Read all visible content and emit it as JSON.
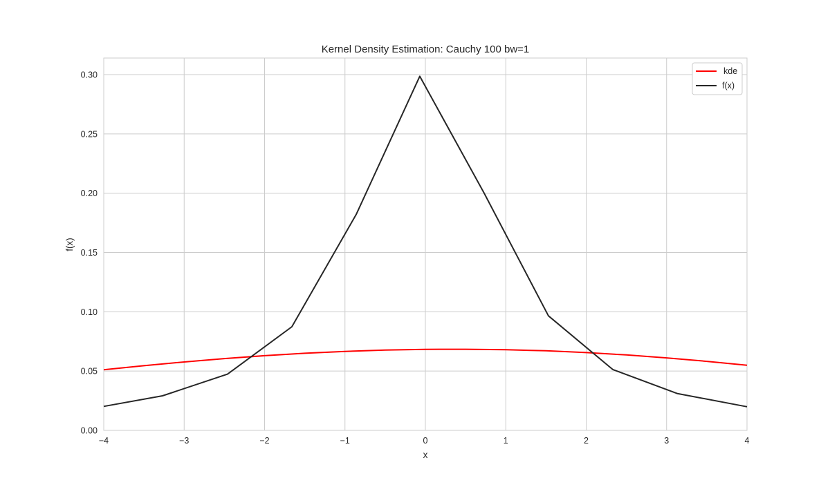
{
  "chart_data": {
    "type": "line",
    "title": "Kernel Density Estimation: Cauchy 100 bw=1",
    "xlabel": "x",
    "ylabel": "f(x)",
    "xlim": [
      -4,
      4
    ],
    "ylim": [
      0,
      0.314
    ],
    "grid": true,
    "legend_position": "top-right",
    "x_ticks": [
      -4,
      -3,
      -2,
      -1,
      0,
      1,
      2,
      3,
      4
    ],
    "x_tick_labels": [
      "−4",
      "−3",
      "−2",
      "−1",
      "0",
      "1",
      "2",
      "3",
      "4"
    ],
    "y_ticks": [
      0,
      0.05,
      0.1,
      0.15,
      0.2,
      0.25,
      0.3
    ],
    "y_tick_labels": [
      "0.00",
      "0.05",
      "0.10",
      "0.15",
      "0.20",
      "0.25",
      "0.30"
    ],
    "series": [
      {
        "name": "kde",
        "color": "#ff0000",
        "x": [
          -4,
          -3.5,
          -3,
          -2.5,
          -2,
          -1.5,
          -1,
          -0.5,
          0,
          0.3,
          0.5,
          1,
          1.5,
          2,
          2.5,
          3,
          3.5,
          4
        ],
        "y": [
          0.0511,
          0.0545,
          0.0577,
          0.0605,
          0.063,
          0.065,
          0.0666,
          0.0677,
          0.0683,
          0.0684,
          0.0684,
          0.068,
          0.0671,
          0.0656,
          0.0636,
          0.0611,
          0.0582,
          0.0549
        ]
      },
      {
        "name": "f(x)",
        "color": "#262626",
        "x": [
          -4,
          -3.27,
          -2.46,
          -1.66,
          -0.86,
          -0.07,
          0.73,
          1.53,
          2.33,
          3.13,
          4
        ],
        "y": [
          0.0202,
          0.0291,
          0.0474,
          0.0874,
          0.1821,
          0.2986,
          0.2001,
          0.0966,
          0.0513,
          0.0311,
          0.0199
        ]
      }
    ]
  }
}
